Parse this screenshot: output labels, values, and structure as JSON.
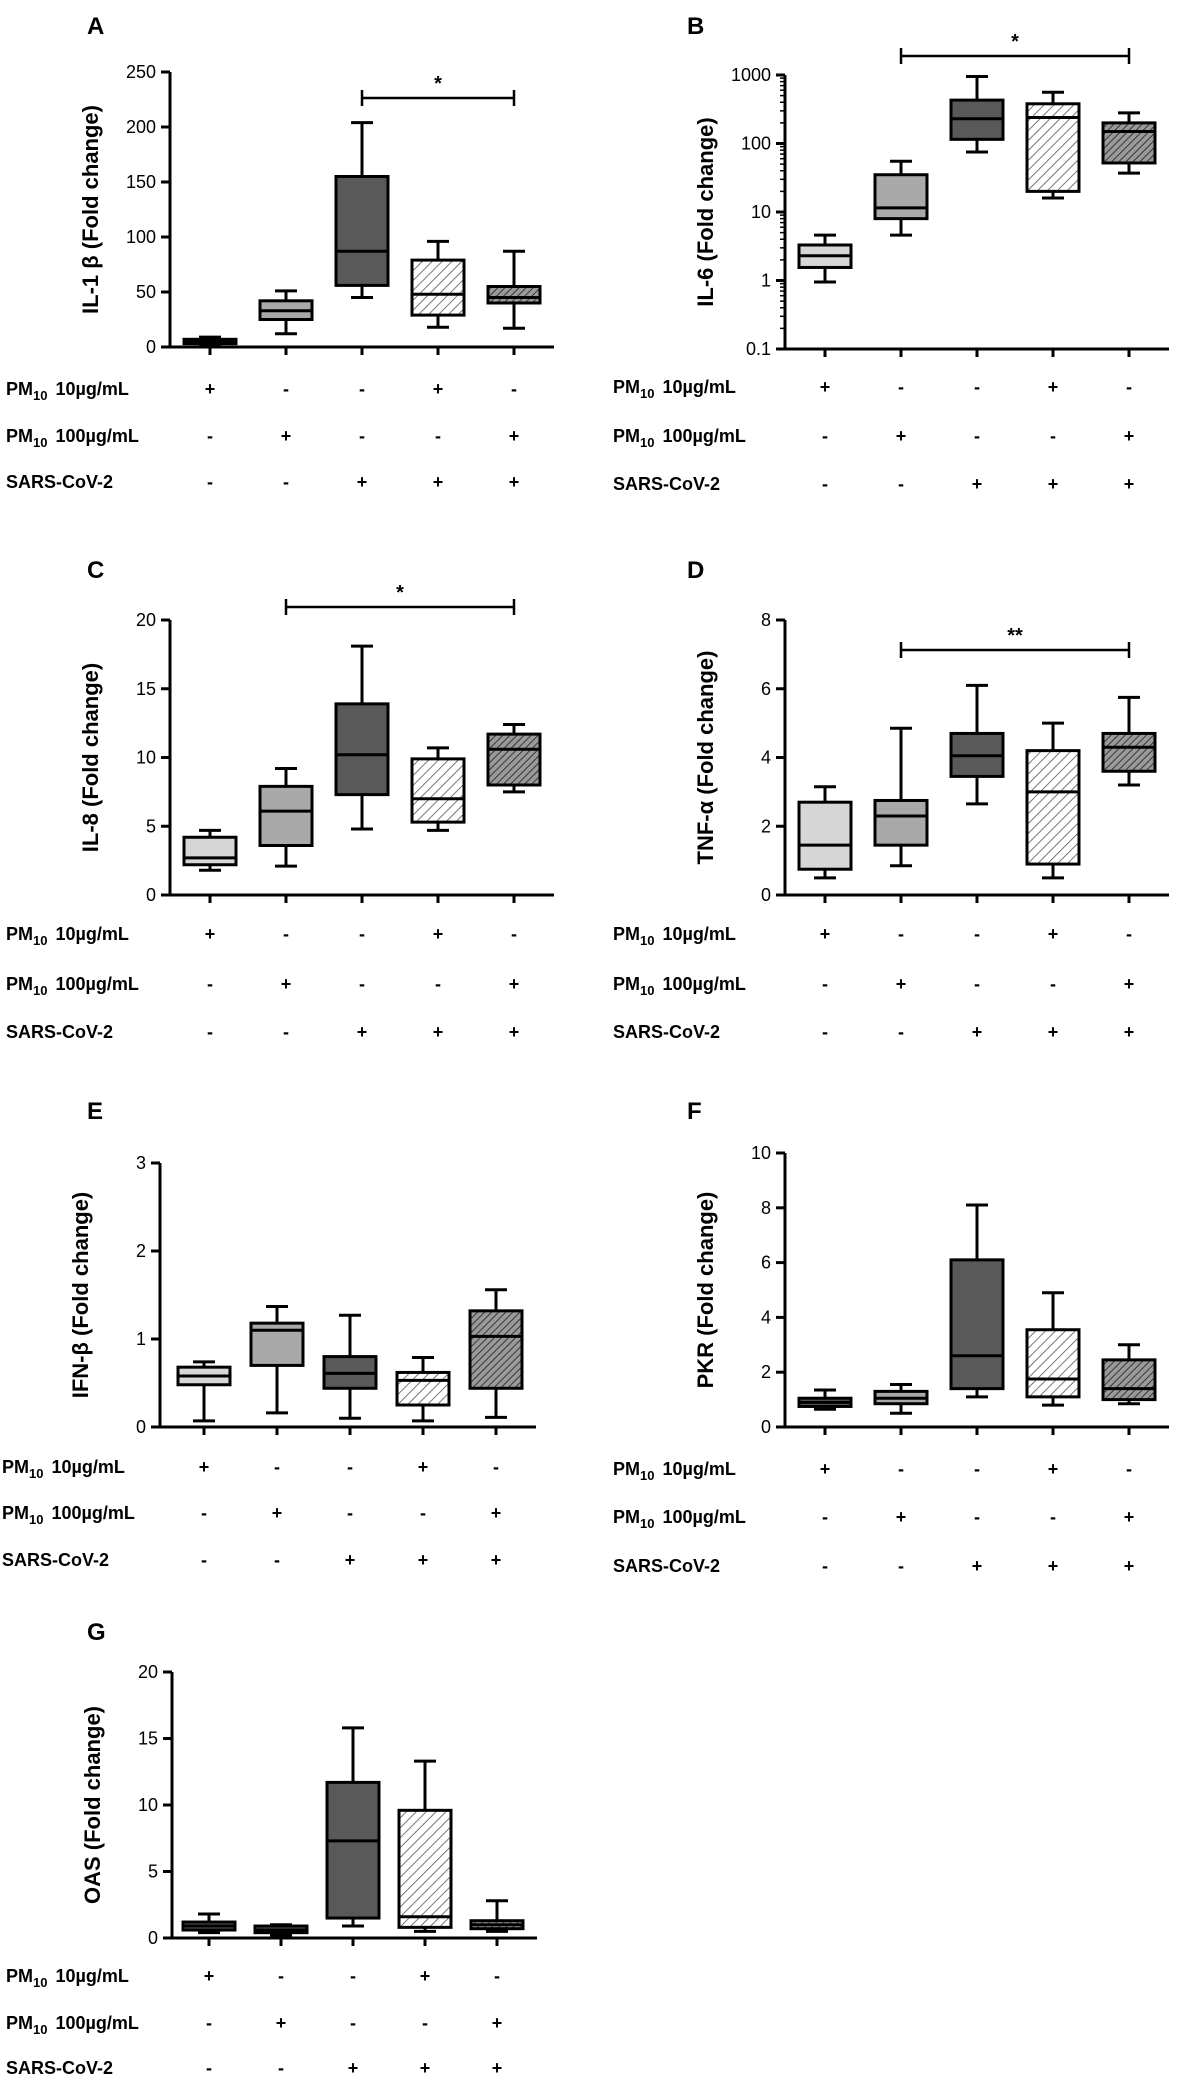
{
  "colors": {
    "box_light": "#d6d6d6",
    "box_mid": "#a9a9a9",
    "box_dark": "#595959",
    "hatch_light": "#ffffff",
    "hatch_dark": "#9a9a9a",
    "line": "#000000"
  },
  "row_labels": {
    "pm10_low": "PM",
    "pm10_low_sub": "10",
    "pm10_low_dose": "10µg/mL",
    "pm10_high": "PM",
    "pm10_high_sub": "10",
    "pm10_high_dose": "100µg/mL",
    "sars": "SARS-CoV-2"
  },
  "conditions": {
    "pm10_low": [
      "+",
      "-",
      "-",
      "+",
      "-"
    ],
    "pm10_high": [
      "-",
      "+",
      "-",
      "-",
      "+"
    ],
    "sars": [
      "-",
      "-",
      "+",
      "+",
      "+"
    ]
  },
  "chart_data": [
    {
      "panel": "A",
      "type": "box",
      "ylabel": "IL-1 β (Fold change)",
      "yscale": "linear",
      "ylim": [
        0,
        250
      ],
      "yticks": [
        "0",
        "50",
        "100",
        "150",
        "200",
        "250"
      ],
      "styles": [
        "light",
        "mid",
        "dark",
        "hatch-light",
        "hatch-dark"
      ],
      "boxes": [
        {
          "min": 2,
          "q1": 3,
          "median": 5,
          "q3": 7,
          "max": 9
        },
        {
          "min": 12,
          "q1": 25,
          "median": 33,
          "q3": 42,
          "max": 51
        },
        {
          "min": 45,
          "q1": 56,
          "median": 87,
          "q3": 155,
          "max": 204
        },
        {
          "min": 18,
          "q1": 29,
          "median": 48,
          "q3": 79,
          "max": 96
        },
        {
          "min": 17,
          "q1": 40,
          "median": 45,
          "q3": 55,
          "max": 87
        }
      ],
      "significance": [
        {
          "from": 3,
          "to": 5,
          "label": "*"
        }
      ]
    },
    {
      "panel": "B",
      "type": "box",
      "ylabel": "IL-6 (Fold change)",
      "yscale": "log",
      "ylim": [
        0.1,
        1000
      ],
      "yticks": [
        "0.1",
        "1",
        "10",
        "100",
        "1000"
      ],
      "styles": [
        "light",
        "mid",
        "dark",
        "hatch-light",
        "hatch-dark"
      ],
      "boxes": [
        {
          "min": 0.95,
          "q1": 1.55,
          "median": 2.3,
          "q3": 3.3,
          "max": 4.6
        },
        {
          "min": 4.6,
          "q1": 8,
          "median": 11.5,
          "q3": 35,
          "max": 55
        },
        {
          "min": 75,
          "q1": 115,
          "median": 230,
          "q3": 430,
          "max": 950
        },
        {
          "min": 16,
          "q1": 20,
          "median": 240,
          "q3": 380,
          "max": 560
        },
        {
          "min": 37,
          "q1": 52,
          "median": 150,
          "q3": 200,
          "max": 280
        }
      ],
      "significance": [
        {
          "from": 2,
          "to": 5,
          "label": "*"
        }
      ]
    },
    {
      "panel": "C",
      "type": "box",
      "ylabel": "IL-8 (Fold change)",
      "yscale": "linear",
      "ylim": [
        0,
        20
      ],
      "yticks": [
        "0",
        "5",
        "10",
        "15",
        "20"
      ],
      "styles": [
        "light",
        "mid",
        "dark",
        "hatch-light",
        "hatch-dark"
      ],
      "boxes": [
        {
          "min": 1.8,
          "q1": 2.2,
          "median": 2.7,
          "q3": 4.2,
          "max": 4.7
        },
        {
          "min": 2.1,
          "q1": 3.6,
          "median": 6.1,
          "q3": 7.9,
          "max": 9.2
        },
        {
          "min": 4.8,
          "q1": 7.3,
          "median": 10.2,
          "q3": 13.9,
          "max": 18.1
        },
        {
          "min": 4.7,
          "q1": 5.3,
          "median": 7.0,
          "q3": 9.9,
          "max": 10.7
        },
        {
          "min": 7.5,
          "q1": 8.0,
          "median": 10.6,
          "q3": 11.7,
          "max": 12.4
        }
      ],
      "significance": [
        {
          "from": 2,
          "to": 5,
          "label": "*"
        }
      ]
    },
    {
      "panel": "D",
      "type": "box",
      "ylabel": "TNF-α (Fold change)",
      "yscale": "linear",
      "ylim": [
        0,
        8
      ],
      "yticks": [
        "0",
        "2",
        "4",
        "6",
        "8"
      ],
      "styles": [
        "light",
        "mid",
        "dark",
        "hatch-light",
        "hatch-dark"
      ],
      "boxes": [
        {
          "min": 0.5,
          "q1": 0.75,
          "median": 1.45,
          "q3": 2.7,
          "max": 3.15
        },
        {
          "min": 0.85,
          "q1": 1.45,
          "median": 2.3,
          "q3": 2.75,
          "max": 4.85
        },
        {
          "min": 2.65,
          "q1": 3.45,
          "median": 4.05,
          "q3": 4.7,
          "max": 6.1
        },
        {
          "min": 0.5,
          "q1": 0.9,
          "median": 3.0,
          "q3": 4.2,
          "max": 5.0
        },
        {
          "min": 3.2,
          "q1": 3.6,
          "median": 4.3,
          "q3": 4.7,
          "max": 5.75
        }
      ],
      "significance": [
        {
          "from": 2,
          "to": 5,
          "label": "**"
        }
      ]
    },
    {
      "panel": "E",
      "type": "box",
      "ylabel": "IFN-β (Fold change)",
      "yscale": "linear",
      "ylim": [
        0,
        3
      ],
      "yticks": [
        "0",
        "1",
        "2",
        "3"
      ],
      "styles": [
        "light",
        "mid",
        "dark",
        "hatch-light",
        "hatch-dark"
      ],
      "boxes": [
        {
          "min": 0.07,
          "q1": 0.48,
          "median": 0.58,
          "q3": 0.68,
          "max": 0.74
        },
        {
          "min": 0.16,
          "q1": 0.7,
          "median": 1.1,
          "q3": 1.18,
          "max": 1.37
        },
        {
          "min": 0.1,
          "q1": 0.44,
          "median": 0.61,
          "q3": 0.8,
          "max": 1.27
        },
        {
          "min": 0.07,
          "q1": 0.25,
          "median": 0.53,
          "q3": 0.62,
          "max": 0.79
        },
        {
          "min": 0.11,
          "q1": 0.44,
          "median": 1.03,
          "q3": 1.32,
          "max": 1.56
        }
      ],
      "significance": []
    },
    {
      "panel": "F",
      "type": "box",
      "ylabel": "PKR (Fold change)",
      "yscale": "linear",
      "ylim": [
        0,
        10
      ],
      "yticks": [
        "0",
        "2",
        "4",
        "6",
        "8",
        "10"
      ],
      "styles": [
        "dark",
        "mid",
        "dark",
        "hatch-light",
        "hatch-dark"
      ],
      "boxes": [
        {
          "min": 0.65,
          "q1": 0.75,
          "median": 0.9,
          "q3": 1.05,
          "max": 1.35
        },
        {
          "min": 0.5,
          "q1": 0.85,
          "median": 1.05,
          "q3": 1.3,
          "max": 1.55
        },
        {
          "min": 1.1,
          "q1": 1.4,
          "median": 2.6,
          "q3": 6.1,
          "max": 8.1
        },
        {
          "min": 0.8,
          "q1": 1.1,
          "median": 1.75,
          "q3": 3.55,
          "max": 4.9
        },
        {
          "min": 0.85,
          "q1": 1.0,
          "median": 1.4,
          "q3": 2.45,
          "max": 3.0
        }
      ],
      "significance": []
    },
    {
      "panel": "G",
      "type": "box",
      "ylabel": "OAS (Fold change)",
      "yscale": "linear",
      "ylim": [
        0,
        20
      ],
      "yticks": [
        "0",
        "5",
        "10",
        "15",
        "20"
      ],
      "styles": [
        "dark",
        "dark",
        "dark",
        "hatch-light",
        "hatch-dark"
      ],
      "boxes": [
        {
          "min": 0.4,
          "q1": 0.6,
          "median": 0.9,
          "q3": 1.2,
          "max": 1.8
        },
        {
          "min": 0.2,
          "q1": 0.4,
          "median": 0.6,
          "q3": 0.9,
          "max": 1.0
        },
        {
          "min": 0.9,
          "q1": 1.5,
          "median": 7.3,
          "q3": 11.7,
          "max": 15.8
        },
        {
          "min": 0.5,
          "q1": 0.8,
          "median": 1.6,
          "q3": 9.6,
          "max": 13.3
        },
        {
          "min": 0.5,
          "q1": 0.7,
          "median": 1.0,
          "q3": 1.3,
          "max": 2.8
        }
      ],
      "significance": []
    }
  ]
}
